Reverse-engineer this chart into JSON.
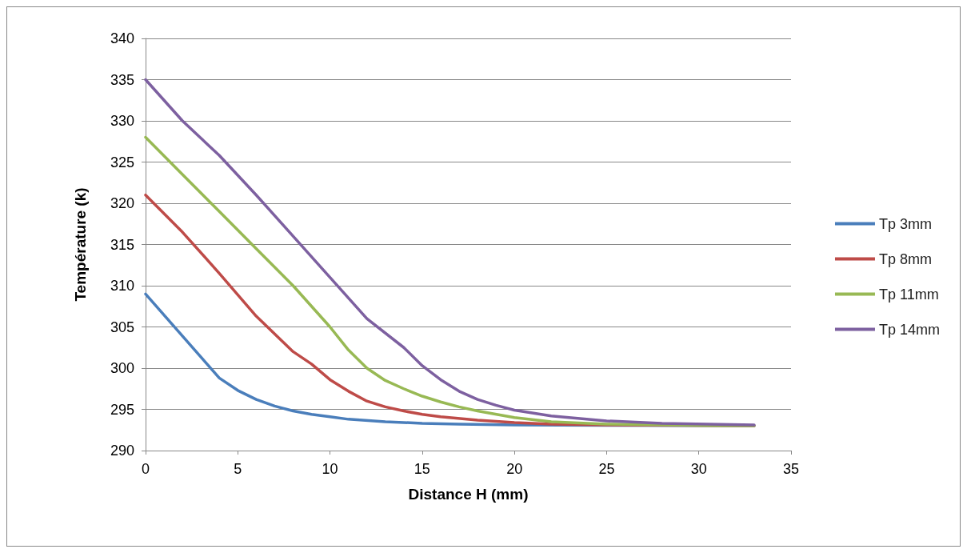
{
  "chart_data": {
    "type": "line",
    "xlabel": "Distance H (mm)",
    "ylabel": "Température (k)",
    "xlim": [
      0,
      35
    ],
    "xticks": [
      0,
      5,
      10,
      15,
      20,
      25,
      30,
      35
    ],
    "ylim": [
      290,
      340
    ],
    "yticks": [
      290,
      295,
      300,
      305,
      310,
      315,
      320,
      325,
      330,
      335,
      340
    ],
    "grid": "y",
    "legend": "right",
    "marker": "none",
    "line_style": "solid",
    "series": [
      {
        "name": "Tp 3mm",
        "color": "#4a7ebb",
        "x": [
          0,
          2,
          4,
          5,
          6,
          7,
          8,
          9,
          10,
          11,
          13,
          15,
          17,
          20,
          25,
          33
        ],
        "values": [
          309,
          303.9,
          298.8,
          297.3,
          296.2,
          295.4,
          294.8,
          294.4,
          294.1,
          293.8,
          293.5,
          293.3,
          293.2,
          293.1,
          293.05,
          293
        ]
      },
      {
        "name": "Tp 8mm",
        "color": "#be4b48",
        "x": [
          0,
          2,
          4,
          6,
          8,
          9,
          10,
          11,
          12,
          13,
          14,
          15,
          16,
          18,
          20,
          22,
          25,
          33
        ],
        "values": [
          321,
          316.5,
          311.5,
          306.3,
          302,
          300.5,
          298.6,
          297.2,
          296,
          295.3,
          294.8,
          294.4,
          294.1,
          293.7,
          293.4,
          293.2,
          293.1,
          293
        ]
      },
      {
        "name": "Tp 11mm",
        "color": "#98b954",
        "x": [
          0,
          2,
          4,
          6,
          8,
          10,
          11,
          12,
          13,
          14,
          15,
          16,
          17,
          18,
          20,
          22,
          25,
          30,
          33
        ],
        "values": [
          328,
          323.5,
          319,
          314.5,
          310,
          305,
          302.2,
          300,
          298.5,
          297.5,
          296.6,
          295.9,
          295.3,
          294.8,
          294,
          293.5,
          293.2,
          293.05,
          293
        ]
      },
      {
        "name": "Tp 14mm",
        "color": "#7d60a0",
        "x": [
          0,
          2,
          4,
          6,
          8,
          10,
          12,
          14,
          15,
          16,
          17,
          18,
          19,
          20,
          22,
          25,
          28,
          33
        ],
        "values": [
          335,
          330,
          325.8,
          321,
          316,
          311,
          306,
          302.5,
          300.3,
          298.6,
          297.2,
          296.2,
          295.5,
          294.9,
          294.2,
          293.6,
          293.3,
          293.1
        ]
      }
    ]
  }
}
